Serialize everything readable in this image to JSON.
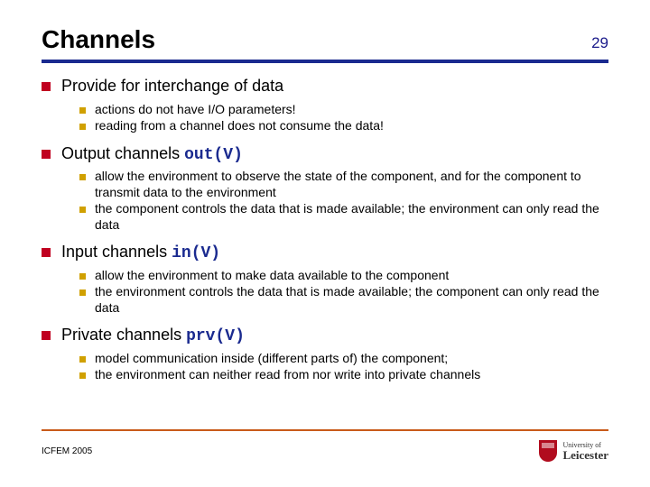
{
  "header": {
    "title": "Channels",
    "page_number": "29"
  },
  "colors": {
    "rule": "#1a2a8f",
    "bullet1": "#c00020",
    "bullet2": "#d0a000",
    "footer_rule": "#c85a1a",
    "code": "#1a2a8f"
  },
  "bullets": [
    {
      "text": "Provide for interchange of data",
      "code": "",
      "sub": [
        "actions do not have I/O parameters!",
        "reading from a channel does not consume the data!"
      ]
    },
    {
      "text": "Output channels ",
      "code": "out(V)",
      "sub": [
        "allow the environment to observe the state of the component, and for the component to transmit data to the environment",
        "the component controls the data that is made available; the environment can only read the data"
      ]
    },
    {
      "text": "Input channels ",
      "code": "in(V)",
      "sub": [
        "allow the environment to make data available to the component",
        "the environment controls the data that is made available; the component can only read the data"
      ]
    },
    {
      "text": "Private channels ",
      "code": "prv(V)",
      "sub": [
        "model communication inside (different parts of) the component;",
        "the environment can neither read from nor write into private channels"
      ]
    }
  ],
  "footer": {
    "left": "ICFEM 2005",
    "logo_top": "University of",
    "logo_bottom": "Leicester"
  }
}
